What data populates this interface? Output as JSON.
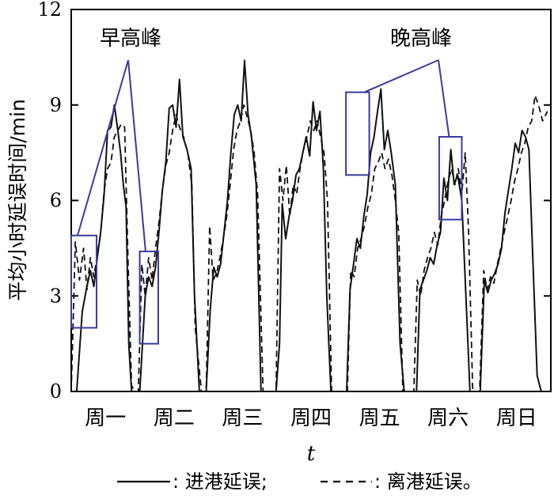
{
  "chart_data": {
    "type": "line",
    "ylabel": "平均小时延误时间/min",
    "xlabel": "t",
    "ylim": [
      0,
      12
    ],
    "yticks": [
      0,
      3,
      6,
      9,
      12
    ],
    "y_tick_labels": [
      "0",
      "3",
      "6",
      "9",
      "12"
    ],
    "categories": [
      "周一",
      "周二",
      "周三",
      "周四",
      "周五",
      "周六",
      "周日"
    ],
    "xlim": [
      0,
      7
    ],
    "legend": [
      {
        "symbol": "——",
        "label": ": 进港延误;"
      },
      {
        "symbol": "- - - -",
        "label": ": 离港延误。"
      }
    ],
    "legend_position": "bottom",
    "annotations": [
      {
        "text": "早高峰",
        "boxes": [
          [
            0.0,
            0.37,
            2.0,
            4.9
          ],
          [
            1.0,
            1.27,
            1.5,
            4.4
          ]
        ]
      },
      {
        "text": "晚高峰",
        "boxes": [
          [
            4.01,
            4.35,
            6.8,
            9.4
          ],
          [
            5.37,
            5.7,
            5.4,
            8.0
          ]
        ]
      }
    ],
    "series": [
      {
        "name": "进港延误",
        "style": "solid",
        "x": [
          0.08,
          0.16,
          0.22,
          0.28,
          0.33,
          0.38,
          0.43,
          0.48,
          0.53,
          0.58,
          0.63,
          0.68,
          0.72,
          0.76,
          0.8,
          0.84,
          0.88,
          0.92,
          1.0,
          1.08,
          1.13,
          1.18,
          1.23,
          1.28,
          1.33,
          1.38,
          1.43,
          1.48,
          1.53,
          1.58,
          1.63,
          1.69,
          1.75,
          1.8,
          1.87,
          1.97,
          2.03,
          2.08,
          2.13,
          2.18,
          2.23,
          2.28,
          2.33,
          2.38,
          2.43,
          2.48,
          2.53,
          2.58,
          2.63,
          2.7,
          2.77,
          2.85,
          2.92,
          2.99,
          3.04,
          3.08,
          3.13,
          3.18,
          3.23,
          3.28,
          3.33,
          3.38,
          3.43,
          3.48,
          3.53,
          3.58,
          3.63,
          3.68,
          3.73,
          3.79,
          3.86,
          3.95,
          4.02,
          4.07,
          4.12,
          4.17,
          4.22,
          4.27,
          4.32,
          4.37,
          4.42,
          4.47,
          4.52,
          4.57,
          4.62,
          4.67,
          4.73,
          4.8,
          4.86,
          4.98,
          5.04,
          5.09,
          5.14,
          5.19,
          5.24,
          5.29,
          5.34,
          5.39,
          5.44,
          5.49,
          5.54,
          5.59,
          5.64,
          5.7,
          5.76,
          5.82,
          5.87,
          5.97,
          6.03,
          6.08,
          6.13,
          6.18,
          6.23,
          6.28,
          6.33,
          6.38,
          6.43,
          6.48,
          6.53,
          6.58,
          6.63,
          6.68,
          6.74,
          6.8,
          6.86,
          6.93
        ],
        "y": [
          0,
          2.5,
          3.2,
          3.8,
          3.3,
          4.2,
          5.0,
          6.2,
          8.2,
          8.3,
          9.0,
          8.2,
          7.5,
          6.5,
          5.8,
          1.5,
          0,
          0,
          0,
          3.0,
          3.6,
          3.3,
          3.9,
          5.0,
          6.3,
          7.2,
          8.9,
          9.0,
          8.3,
          9.8,
          8.0,
          7.6,
          7.0,
          3.0,
          0,
          0,
          2.6,
          3.9,
          3.6,
          4.0,
          5.0,
          6.0,
          7.5,
          8.7,
          9.0,
          8.5,
          10.4,
          8.7,
          8.0,
          6.5,
          0,
          0,
          0,
          0,
          1.5,
          5.9,
          4.8,
          5.5,
          6.0,
          6.8,
          7.0,
          7.5,
          8.0,
          7.4,
          9.1,
          8.2,
          8.8,
          7.0,
          3.0,
          0,
          0,
          0,
          0,
          3.2,
          4.0,
          4.8,
          4.5,
          5.5,
          6.2,
          7.5,
          8.0,
          8.8,
          9.5,
          7.6,
          8.2,
          7.5,
          6.5,
          1.5,
          0,
          0,
          0,
          3.2,
          3.5,
          3.8,
          4.2,
          4.0,
          4.6,
          5.0,
          6.7,
          6.0,
          7.6,
          6.5,
          6.8,
          6.0,
          3.0,
          0,
          0,
          0,
          3.5,
          3.1,
          3.5,
          3.7,
          4.0,
          4.5,
          5.6,
          6.3,
          7.0,
          7.8,
          7.5,
          8.2,
          8.0,
          7.6,
          4.0,
          0.5,
          0,
          0
        ]
      },
      {
        "name": "离港延误",
        "style": "dashed",
        "x": [
          0.0,
          0.06,
          0.12,
          0.18,
          0.23,
          0.28,
          0.33,
          0.38,
          0.43,
          0.48,
          0.53,
          0.58,
          0.63,
          0.68,
          0.73,
          0.78,
          0.83,
          0.88,
          0.92,
          0.98,
          1.03,
          1.08,
          1.13,
          1.18,
          1.23,
          1.28,
          1.33,
          1.38,
          1.43,
          1.48,
          1.53,
          1.58,
          1.64,
          1.7,
          1.76,
          1.81,
          1.9,
          1.97,
          2.02,
          2.07,
          2.12,
          2.17,
          2.22,
          2.27,
          2.32,
          2.37,
          2.42,
          2.47,
          2.52,
          2.57,
          2.62,
          2.67,
          2.72,
          2.8,
          2.87,
          2.93,
          2.99,
          3.04,
          3.09,
          3.14,
          3.19,
          3.24,
          3.29,
          3.34,
          3.39,
          3.44,
          3.49,
          3.54,
          3.59,
          3.64,
          3.69,
          3.74,
          3.8,
          3.88,
          3.96,
          4.03,
          4.08,
          4.13,
          4.18,
          4.23,
          4.28,
          4.33,
          4.38,
          4.43,
          4.48,
          4.53,
          4.58,
          4.63,
          4.68,
          4.73,
          4.78,
          4.84,
          4.92,
          5.0,
          5.05,
          5.1,
          5.15,
          5.2,
          5.25,
          5.3,
          5.35,
          5.4,
          5.45,
          5.5,
          5.55,
          5.6,
          5.65,
          5.7,
          5.75,
          5.8,
          5.86,
          5.96,
          6.02,
          6.07,
          6.12,
          6.17,
          6.22,
          6.27,
          6.32,
          6.37,
          6.42,
          6.47,
          6.52,
          6.57,
          6.62,
          6.67,
          6.72,
          6.77,
          6.82,
          6.88,
          6.95
        ],
        "y": [
          0,
          4.7,
          3.5,
          4.5,
          3.2,
          4.2,
          3.6,
          4.3,
          5.0,
          6.3,
          7.0,
          7.2,
          8.0,
          8.2,
          8.4,
          8.3,
          4.0,
          0.2,
          0,
          0,
          4.0,
          3.0,
          4.2,
          3.5,
          4.5,
          5.3,
          6.3,
          7.1,
          7.5,
          8.2,
          8.7,
          8.3,
          8.0,
          7.5,
          6.5,
          2.0,
          0,
          0,
          5.2,
          3.5,
          3.7,
          4.2,
          4.8,
          5.5,
          6.5,
          7.6,
          8.2,
          8.5,
          9.0,
          8.6,
          8.2,
          7.5,
          6.2,
          0,
          0,
          0,
          0,
          7.0,
          6.0,
          7.1,
          5.5,
          6.5,
          6.2,
          7.0,
          7.6,
          8.0,
          8.5,
          8.2,
          8.5,
          8.0,
          7.5,
          6.0,
          0,
          0,
          0,
          0,
          3.8,
          3.6,
          4.5,
          4.8,
          5.2,
          5.8,
          6.2,
          7.0,
          7.2,
          7.5,
          7.0,
          7.3,
          6.8,
          6.0,
          5.0,
          0,
          0,
          0,
          3.5,
          3.0,
          3.8,
          4.2,
          4.5,
          5.0,
          4.6,
          5.5,
          6.0,
          6.6,
          7.0,
          6.5,
          7.0,
          6.2,
          7.5,
          5.0,
          0,
          0,
          3.8,
          3.2,
          3.6,
          3.4,
          4.0,
          4.5,
          5.0,
          5.5,
          6.0,
          6.6,
          7.0,
          7.5,
          7.8,
          8.3,
          8.5,
          9.3,
          9.0,
          8.5,
          8.8
        ]
      }
    ]
  }
}
